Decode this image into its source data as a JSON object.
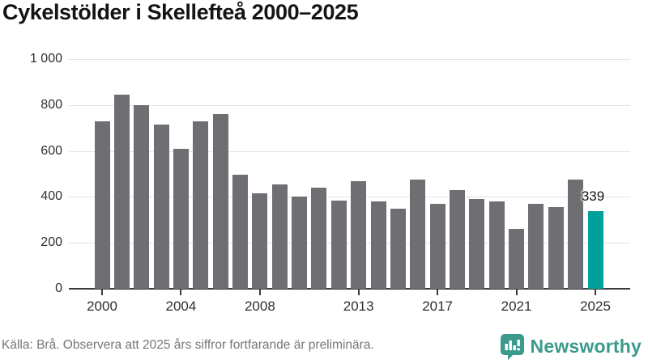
{
  "title": "Cykelstölder i Skellefteå 2000–2025",
  "chart_data": {
    "type": "bar",
    "title": "Cykelstölder i Skellefteå 2000–2025",
    "categories": [
      "2000",
      "2001",
      "2002",
      "2003",
      "2004",
      "2005",
      "2006",
      "2007",
      "2008",
      "2009",
      "2010",
      "2011",
      "2012",
      "2013",
      "2014",
      "2015",
      "2016",
      "2017",
      "2018",
      "2019",
      "2020",
      "2021",
      "2022",
      "2023",
      "2024",
      "2025"
    ],
    "values": [
      730,
      845,
      800,
      715,
      610,
      730,
      760,
      495,
      415,
      455,
      400,
      440,
      385,
      470,
      380,
      350,
      475,
      370,
      430,
      390,
      380,
      260,
      370,
      355,
      475,
      339
    ],
    "xlabel": "",
    "ylabel": "",
    "ylim": [
      0,
      1000
    ],
    "yticks": [
      0,
      200,
      400,
      600,
      800,
      1000
    ],
    "ytick_labels": [
      "0",
      "200",
      "400",
      "600",
      "800",
      "1 000"
    ],
    "xtick_labels": [
      "2000",
      "2004",
      "2008",
      "2013",
      "2017",
      "2021",
      "2025"
    ],
    "grid": "horizontal",
    "legend": "none",
    "bar_color": "#6e6e73",
    "highlight_index": 25,
    "highlight_color": "#00a09b",
    "highlight_label": "339"
  },
  "footer": {
    "source_text": "Källa: Brå. Observera att 2025 års siffror fortfarande är preliminära.",
    "brand": "Newsworthy",
    "brand_color": "#3c9a8d"
  }
}
